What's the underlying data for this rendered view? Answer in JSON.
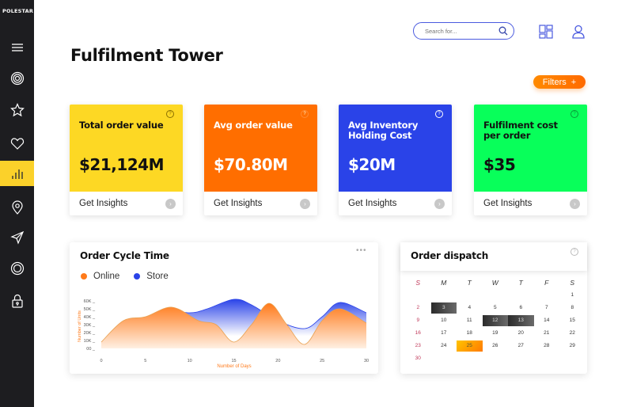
{
  "app": {
    "logo": "POLESTAR"
  },
  "sidebar": {
    "items": [
      {
        "name": "menu",
        "active": false
      },
      {
        "name": "target",
        "active": false
      },
      {
        "name": "star",
        "active": false
      },
      {
        "name": "heart",
        "active": false
      },
      {
        "name": "analytics",
        "active": true
      },
      {
        "name": "location",
        "active": false
      },
      {
        "name": "send",
        "active": false
      },
      {
        "name": "settings",
        "active": false
      },
      {
        "name": "lock",
        "active": false
      }
    ],
    "active_color": "#fbd12a"
  },
  "header": {
    "search_placeholder": "Search for...",
    "title": "Fulfilment Tower",
    "filters_label": "Filters",
    "filters_icon": "+"
  },
  "kpis": [
    {
      "label": "Total order value",
      "value": "$21,124M",
      "cta": "Get Insights",
      "bg": "#fdd824",
      "fg": "#111111"
    },
    {
      "label": "Avg order value",
      "value": "$70.80M",
      "cta": "Get Insights",
      "bg": "#ff6e00",
      "fg": "#ffffff"
    },
    {
      "label": "Avg Inventory Holding Cost",
      "value": "$20M",
      "cta": "Get Insights",
      "bg": "#2a43e8",
      "fg": "#ffffff"
    },
    {
      "label": "Fulfilment cost per order",
      "value": "$35",
      "cta": "Get Insights",
      "bg": "#08ff5a",
      "fg": "#111111"
    }
  ],
  "cycle_chart": {
    "title": "Order Cycle Time",
    "legend": [
      {
        "label": "Online",
        "color": "#ff7a1a"
      },
      {
        "label": "Store",
        "color": "#2a43e8"
      }
    ],
    "more_icon": "•••"
  },
  "chart_data": {
    "type": "area",
    "title": "Order Cycle Time",
    "xlabel": "Number of Days",
    "ylabel": "Number of Units",
    "x_ticks": [
      "0",
      "5",
      "10",
      "15",
      "20",
      "25",
      "30"
    ],
    "y_ticks": [
      "00",
      "10K",
      "20K",
      "30K",
      "40K",
      "50K",
      "60K"
    ],
    "xlim": [
      0,
      30
    ],
    "ylim": [
      0,
      60000
    ],
    "legend_position": "top-left",
    "series": [
      {
        "name": "Online",
        "color": "#ff7a1a",
        "x": [
          0,
          2.5,
          5,
          8,
          11,
          13,
          15,
          17,
          19,
          21,
          23,
          25,
          27,
          30
        ],
        "values": [
          8000,
          35000,
          40000,
          52000,
          35000,
          30000,
          8000,
          30000,
          57000,
          30000,
          5000,
          35000,
          50000,
          32000
        ]
      },
      {
        "name": "Store",
        "color": "#2a43e8",
        "x": [
          7,
          10,
          12,
          15,
          17,
          20,
          23,
          25,
          27,
          30
        ],
        "values": [
          50000,
          45000,
          50000,
          62000,
          55000,
          35000,
          25000,
          40000,
          58000,
          45000
        ]
      }
    ]
  },
  "dispatch": {
    "title": "Order dispatch",
    "days_of_week": [
      "S",
      "M",
      "T",
      "W",
      "T",
      "F",
      "S"
    ],
    "weeks": [
      [
        "",
        "",
        "",
        "",
        "",
        "",
        "1"
      ],
      [
        "2",
        "3",
        "4",
        "5",
        "6",
        "7",
        "8"
      ],
      [
        "9",
        "10",
        "11",
        "12",
        "13",
        "14",
        "15"
      ],
      [
        "16",
        "17",
        "18",
        "19",
        "20",
        "21",
        "22"
      ],
      [
        "23",
        "24",
        "25",
        "26",
        "27",
        "28",
        "29"
      ],
      [
        "30",
        "",
        "",
        "",
        "",
        "",
        ""
      ]
    ],
    "selected_dark": [
      "3",
      "12",
      "13"
    ],
    "selected_today": "25"
  }
}
